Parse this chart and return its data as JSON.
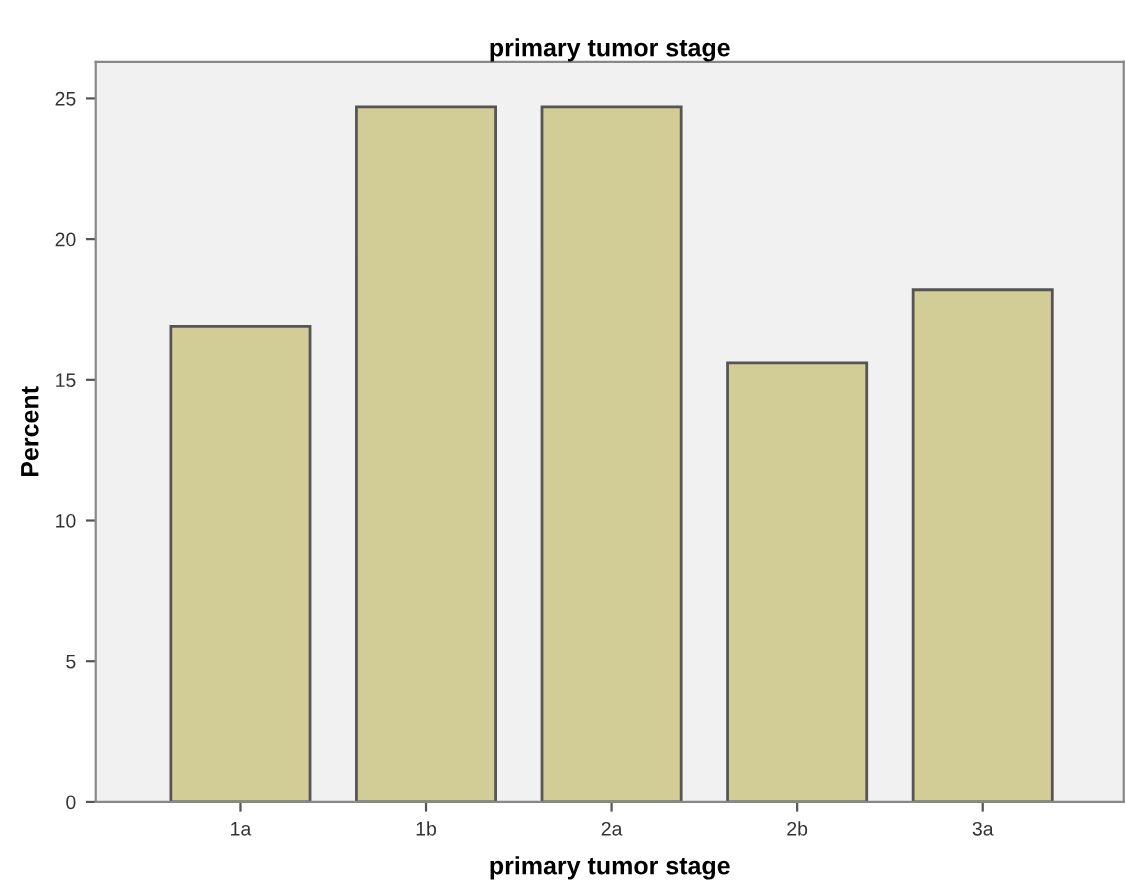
{
  "chart_data": {
    "type": "bar",
    "title": "primary tumor stage",
    "xlabel": "primary tumor stage",
    "ylabel": "Percent",
    "categories": [
      "1a",
      "1b",
      "2a",
      "2b",
      "3a"
    ],
    "values": [
      16.9,
      24.7,
      24.7,
      15.6,
      18.2
    ],
    "color": "#d2cc96",
    "ylim": [
      0,
      26.3
    ],
    "yticks": [
      0,
      5,
      10,
      15,
      20,
      25
    ],
    "grid": false,
    "legend": false
  }
}
